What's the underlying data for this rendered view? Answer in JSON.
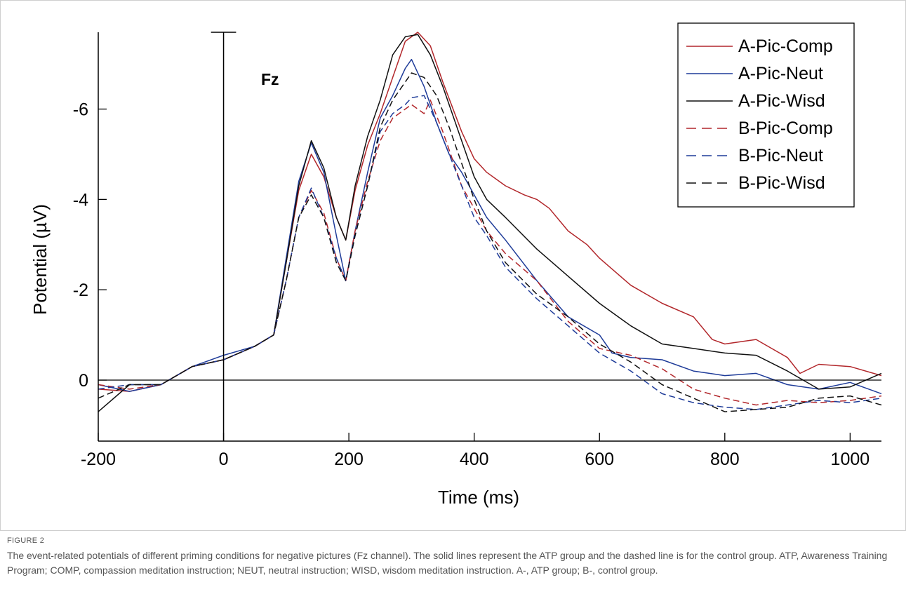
{
  "figure_label": "FIGURE 2",
  "caption": "The event-related potentials of different priming conditions for negative pictures (Fz channel). The solid lines represent the ATP group and the dashed line is for the control group. ATP, Awareness Training Program; COMP, compassion meditation instruction; NEUT, neutral instruction; WISD, wisdom meditation instruction. A-, ATP group; B-, control group.",
  "chart_data": {
    "type": "line",
    "title": "",
    "annotation": "Fz",
    "xlabel": "Time (ms)",
    "ylabel": "Potential (µV)",
    "xlim": [
      -200,
      1050
    ],
    "ylim": [
      1.35,
      -7.7
    ],
    "y_axis_inverted": true,
    "xticks": [
      -200,
      0,
      200,
      400,
      600,
      800,
      1000
    ],
    "yticks": [
      -6,
      -4,
      -2,
      0
    ],
    "grid": false,
    "legend_position": "top-right",
    "series": [
      {
        "name": "A-Pic-Comp",
        "color": "#b2272b",
        "dash": "solid",
        "x": [
          -200,
          -150,
          -100,
          -50,
          0,
          50,
          80,
          100,
          120,
          140,
          160,
          180,
          195,
          210,
          230,
          250,
          270,
          290,
          310,
          330,
          350,
          380,
          400,
          420,
          450,
          480,
          500,
          520,
          550,
          580,
          600,
          650,
          700,
          750,
          780,
          800,
          850,
          900,
          920,
          950,
          1000,
          1050
        ],
        "y": [
          0.2,
          0.25,
          0.1,
          -0.3,
          -0.45,
          -0.75,
          -1.0,
          -2.6,
          -4.2,
          -5.0,
          -4.5,
          -3.6,
          -3.1,
          -4.2,
          -5.2,
          -5.9,
          -6.7,
          -7.5,
          -7.7,
          -7.4,
          -6.6,
          -5.5,
          -4.9,
          -4.6,
          -4.3,
          -4.1,
          -4.0,
          -3.8,
          -3.3,
          -3.0,
          -2.7,
          -2.1,
          -1.7,
          -1.4,
          -0.9,
          -0.8,
          -0.9,
          -0.5,
          -0.15,
          -0.35,
          -0.3,
          -0.1
        ]
      },
      {
        "name": "A-Pic-Neut",
        "color": "#1f3c99",
        "dash": "solid",
        "x": [
          -200,
          -150,
          -100,
          -50,
          0,
          50,
          80,
          100,
          120,
          140,
          160,
          180,
          195,
          210,
          230,
          250,
          270,
          290,
          300,
          320,
          340,
          360,
          380,
          400,
          420,
          450,
          500,
          550,
          600,
          620,
          650,
          700,
          750,
          800,
          850,
          900,
          950,
          1000,
          1050
        ],
        "y": [
          0.1,
          0.25,
          0.1,
          -0.3,
          -0.55,
          -0.75,
          -1.0,
          -2.7,
          -4.4,
          -5.25,
          -4.6,
          -3.2,
          -2.2,
          -3.3,
          -4.6,
          -5.8,
          -6.3,
          -6.9,
          -7.1,
          -6.5,
          -5.7,
          -5.0,
          -4.6,
          -4.1,
          -3.6,
          -3.1,
          -2.2,
          -1.4,
          -1.0,
          -0.6,
          -0.5,
          -0.45,
          -0.2,
          -0.1,
          -0.15,
          0.1,
          0.2,
          0.05,
          0.3
        ]
      },
      {
        "name": "A-Pic-Wisd",
        "color": "#111111",
        "dash": "solid",
        "x": [
          -200,
          -150,
          -100,
          -50,
          0,
          50,
          80,
          100,
          120,
          140,
          160,
          180,
          195,
          210,
          230,
          250,
          270,
          290,
          310,
          330,
          350,
          380,
          400,
          420,
          450,
          500,
          550,
          600,
          650,
          700,
          750,
          800,
          850,
          900,
          950,
          1000,
          1050
        ],
        "y": [
          0.7,
          0.1,
          0.1,
          -0.3,
          -0.45,
          -0.75,
          -1.0,
          -2.6,
          -4.3,
          -5.3,
          -4.7,
          -3.6,
          -3.1,
          -4.3,
          -5.4,
          -6.2,
          -7.2,
          -7.6,
          -7.65,
          -7.2,
          -6.5,
          -5.3,
          -4.5,
          -4.0,
          -3.6,
          -2.9,
          -2.3,
          -1.7,
          -1.2,
          -0.8,
          -0.7,
          -0.6,
          -0.55,
          -0.2,
          0.2,
          0.15,
          -0.15
        ]
      },
      {
        "name": "B-Pic-Comp",
        "color": "#b2272b",
        "dash": "dashed",
        "x": [
          -200,
          -150,
          -100,
          -50,
          0,
          50,
          80,
          100,
          120,
          140,
          160,
          180,
          195,
          210,
          230,
          250,
          270,
          290,
          300,
          320,
          330,
          350,
          380,
          400,
          420,
          450,
          500,
          550,
          600,
          650,
          700,
          750,
          800,
          850,
          900,
          950,
          1000,
          1050
        ],
        "y": [
          0.1,
          0.2,
          0.1,
          -0.3,
          -0.45,
          -0.75,
          -1.0,
          -2.2,
          -3.6,
          -4.2,
          -3.7,
          -2.7,
          -2.2,
          -3.3,
          -4.4,
          -5.3,
          -5.8,
          -6.0,
          -6.1,
          -5.9,
          -6.2,
          -5.5,
          -4.3,
          -3.8,
          -3.3,
          -2.8,
          -2.2,
          -1.3,
          -0.7,
          -0.55,
          -0.25,
          0.2,
          0.4,
          0.55,
          0.45,
          0.5,
          0.45,
          0.35
        ]
      },
      {
        "name": "B-Pic-Neut",
        "color": "#1f3c99",
        "dash": "dashed",
        "x": [
          -200,
          -150,
          -100,
          -50,
          0,
          50,
          80,
          100,
          120,
          140,
          160,
          180,
          195,
          210,
          230,
          250,
          270,
          290,
          300,
          320,
          340,
          360,
          380,
          400,
          420,
          450,
          500,
          550,
          600,
          650,
          700,
          750,
          800,
          850,
          900,
          950,
          1000,
          1050
        ],
        "y": [
          0.2,
          0.1,
          0.1,
          -0.3,
          -0.45,
          -0.75,
          -1.0,
          -2.2,
          -3.6,
          -4.25,
          -3.6,
          -2.7,
          -2.2,
          -3.2,
          -4.3,
          -5.5,
          -5.9,
          -6.1,
          -6.25,
          -6.3,
          -5.7,
          -5.0,
          -4.3,
          -3.6,
          -3.2,
          -2.5,
          -1.8,
          -1.2,
          -0.6,
          -0.2,
          0.3,
          0.5,
          0.6,
          0.65,
          0.55,
          0.45,
          0.5,
          0.4
        ]
      },
      {
        "name": "B-Pic-Wisd",
        "color": "#111111",
        "dash": "dashed",
        "x": [
          -200,
          -150,
          -100,
          -50,
          0,
          50,
          80,
          100,
          120,
          140,
          160,
          180,
          195,
          210,
          230,
          250,
          270,
          290,
          300,
          320,
          340,
          360,
          380,
          400,
          420,
          450,
          500,
          550,
          600,
          650,
          700,
          750,
          800,
          850,
          900,
          950,
          1000,
          1050
        ],
        "y": [
          0.4,
          0.1,
          0.1,
          -0.3,
          -0.45,
          -0.75,
          -1.0,
          -2.2,
          -3.6,
          -4.1,
          -3.6,
          -2.6,
          -2.2,
          -3.2,
          -4.3,
          -5.6,
          -6.2,
          -6.6,
          -6.8,
          -6.7,
          -6.3,
          -5.6,
          -4.8,
          -4.0,
          -3.3,
          -2.6,
          -1.9,
          -1.4,
          -0.8,
          -0.4,
          0.1,
          0.4,
          0.7,
          0.65,
          0.6,
          0.4,
          0.35,
          0.55
        ]
      }
    ]
  }
}
